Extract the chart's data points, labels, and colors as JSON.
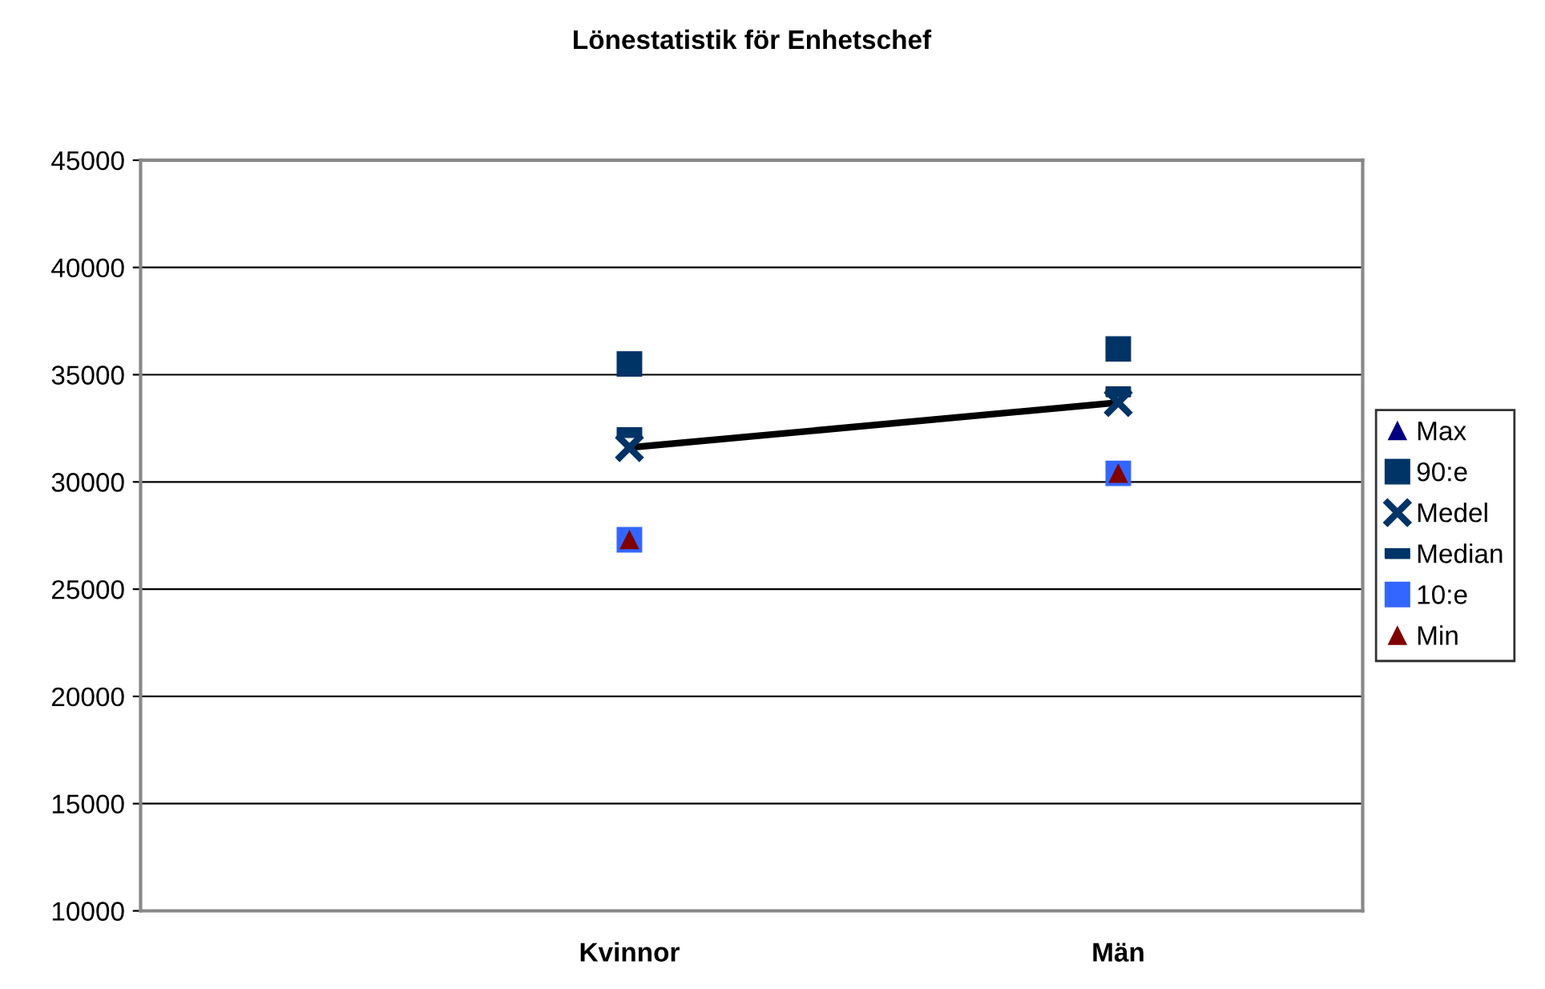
{
  "chart_data": {
    "type": "scatter",
    "title": "Lönestatistik för Enhetschef",
    "categories": [
      "Kvinnor",
      "Män"
    ],
    "series": [
      {
        "name": "Max",
        "color": "#000080",
        "marker": "triangle",
        "values": [
          null,
          null
        ]
      },
      {
        "name": "90:e",
        "color": "#003366",
        "marker": "square",
        "values": [
          35500,
          36200
        ]
      },
      {
        "name": "Medel",
        "color": "#003366",
        "marker": "cross",
        "values": [
          31600,
          33700
        ]
      },
      {
        "name": "Median",
        "color": "#003366",
        "values": [
          32300,
          34200
        ]
      },
      {
        "name": "10:e",
        "color": "#3366ff",
        "marker": "square",
        "values": [
          27300,
          30400
        ]
      },
      {
        "name": "Min",
        "color": "#800000",
        "marker": "triangle",
        "values": [
          27300,
          30400
        ]
      },
      {
        "type": "line",
        "color": "#000000",
        "marker": "none",
        "values": [
          31600,
          33700
        ]
      }
    ],
    "ylim": [
      10000,
      45000
    ],
    "yticks": [
      10000,
      15000,
      20000,
      25000,
      30000,
      35000,
      40000,
      45000
    ],
    "grid": "y",
    "legend": "right"
  }
}
